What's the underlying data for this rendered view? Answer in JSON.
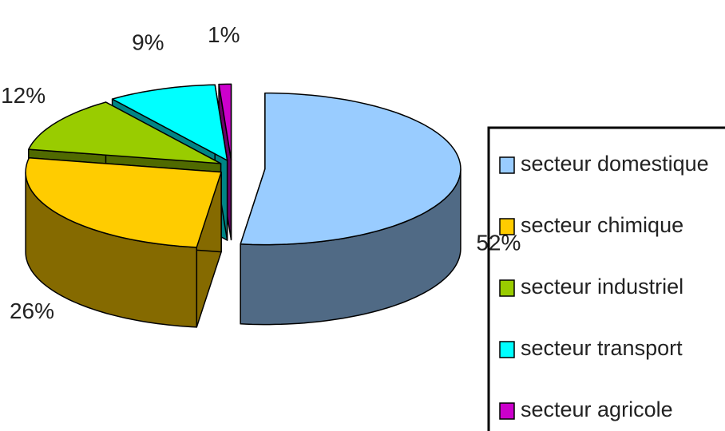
{
  "chart_data": {
    "type": "pie",
    "categories": [
      "secteur domestique",
      "secteur chimique",
      "secteur industriel",
      "secteur transport",
      "secteur agricole"
    ],
    "values": [
      52,
      26,
      12,
      9,
      1
    ],
    "value_labels": [
      "52%",
      "26%",
      "12%",
      "9%",
      "1%"
    ],
    "colors": [
      "#99ccff",
      "#ffcc00",
      "#99cc00",
      "#00ffff",
      "#cc00cc"
    ]
  }
}
